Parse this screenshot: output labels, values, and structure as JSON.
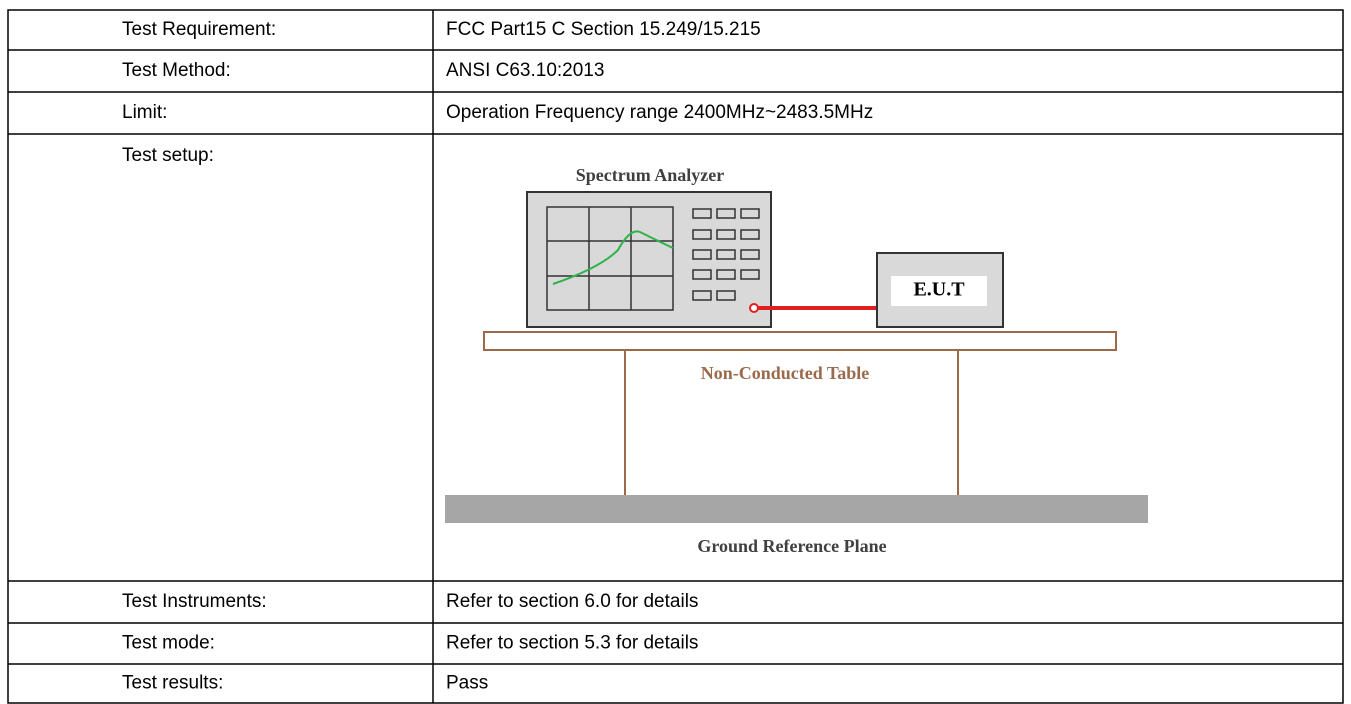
{
  "table": {
    "rows": [
      {
        "label": "Test Requirement:",
        "value": "FCC Part15 C Section 15.249/15.215"
      },
      {
        "label": "Test Method:",
        "value": "ANSI C63.10:2013"
      },
      {
        "label": "Limit:",
        "value": "Operation Frequency range 2400MHz~2483.5MHz"
      },
      {
        "label": "Test setup:"
      },
      {
        "label": "Test Instruments:",
        "value": "Refer to section 6.0 for details"
      },
      {
        "label": "Test mode:",
        "value": "Refer to section 5.3 for details"
      },
      {
        "label": "Test results:",
        "value": "Pass"
      }
    ]
  },
  "diagram": {
    "analyzer": "Spectrum Analyzer",
    "eut": "E.U.T",
    "table": "Non-Conducted Table",
    "ground": "Ground Reference Plane"
  }
}
